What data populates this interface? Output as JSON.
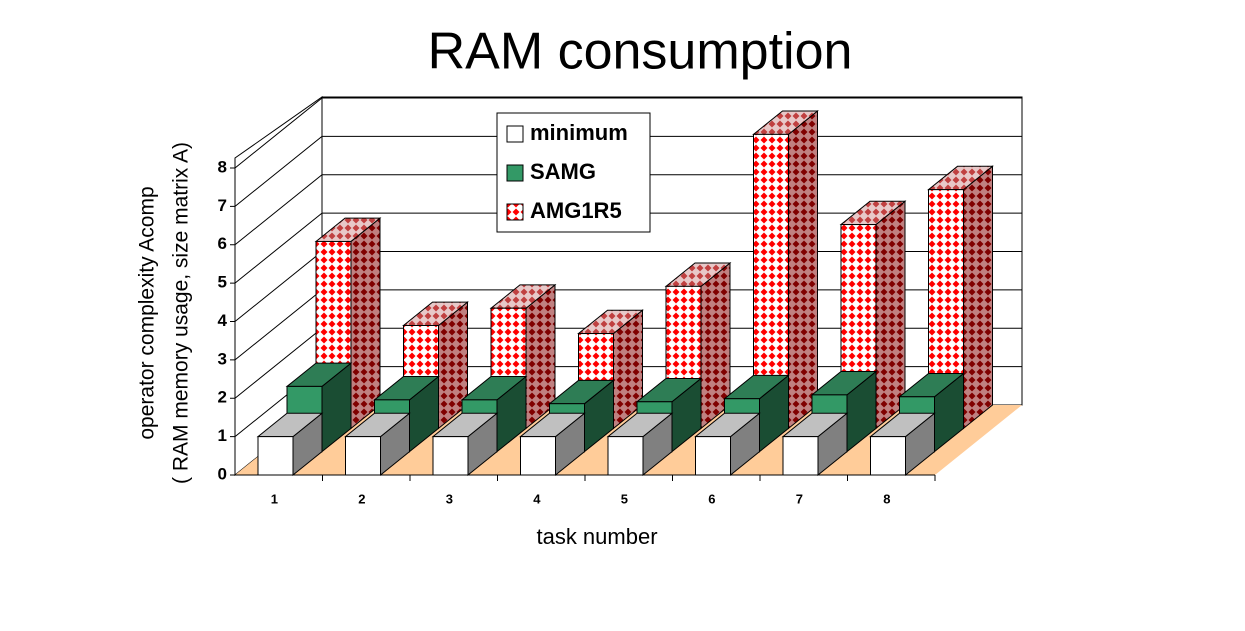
{
  "chart_data": {
    "type": "bar3d",
    "title": "RAM consumption",
    "x_label": "task number",
    "y_label": [
      "operator complexity Acomp",
      "( RAM memory usage, size matrix A)"
    ],
    "categories": [
      "1",
      "2",
      "3",
      "4",
      "5",
      "6",
      "7",
      "8"
    ],
    "series": [
      {
        "name": "minimum",
        "color": "#ffffff",
        "values": [
          1,
          1,
          1,
          1,
          1,
          1,
          1,
          1
        ]
      },
      {
        "name": "SAMG",
        "color": "#339966",
        "values": [
          1.7,
          1.35,
          1.35,
          1.25,
          1.3,
          1.38,
          1.48,
          1.43
        ]
      },
      {
        "name": "AMG1R5",
        "color": "#ff0000",
        "values": [
          4.87,
          2.68,
          3.13,
          2.47,
          3.7,
          7.66,
          5.31,
          6.22
        ]
      }
    ],
    "ylim": [
      0,
      8
    ],
    "yticks": [
      0,
      1,
      2,
      3,
      4,
      5,
      6,
      7,
      8
    ],
    "grid": true
  }
}
